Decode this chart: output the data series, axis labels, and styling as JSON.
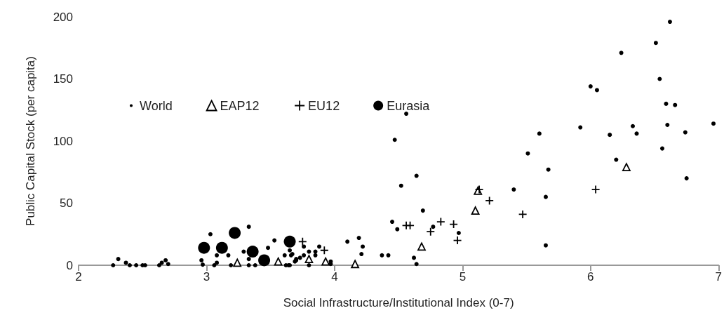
{
  "chart_data": {
    "type": "scatter",
    "xlabel": "Social Infrastructure/Institutional Index (0-7)",
    "ylabel": "Public Capital Stock (per capita)",
    "xlim": [
      2,
      7
    ],
    "xticks": [
      2,
      3,
      4,
      5,
      6,
      7
    ],
    "ylim": [
      0,
      200
    ],
    "yticks": [
      0,
      50,
      100,
      150,
      200
    ],
    "grid": false,
    "legend": "top left",
    "series": [
      {
        "name": "World",
        "color": "#000000",
        "marker": "circle",
        "x": [
          2.27,
          2.31,
          2.37,
          2.4,
          2.45,
          2.5,
          2.52,
          2.63,
          2.65,
          2.68,
          2.7,
          2.96,
          2.97,
          3.03,
          3.06,
          3.08,
          3.08,
          3.17,
          3.19,
          3.33,
          3.29,
          3.33,
          3.33,
          3.38,
          3.48,
          3.53,
          3.61,
          3.66,
          3.65,
          3.62,
          3.65,
          3.69,
          3.7,
          3.76,
          3.67,
          3.64,
          3.7,
          3.73,
          3.76,
          3.8,
          3.8,
          3.85,
          3.85,
          3.88,
          3.97,
          3.97,
          4.1,
          4.19,
          4.22,
          4.21,
          4.37,
          4.42,
          4.45,
          4.49,
          4.62,
          4.64,
          4.77,
          4.97,
          4.69,
          4.56,
          4.47,
          4.64,
          4.52,
          6.62,
          6.51,
          6.24,
          6.54,
          6.0,
          6.05,
          6.59,
          6.66,
          6.96,
          6.6,
          5.92,
          6.33,
          6.36,
          6.15,
          6.74,
          5.6,
          6.56,
          5.51,
          6.2,
          5.67,
          5.4,
          5.65,
          5.65,
          6.75
        ],
        "values": [
          0,
          5,
          2,
          0,
          0,
          0,
          0,
          0,
          2,
          4,
          1,
          4,
          0.5,
          25,
          0,
          2,
          8,
          8,
          0,
          31,
          11,
          5,
          0,
          0,
          14,
          20,
          8,
          8,
          12,
          0,
          0,
          3,
          5,
          15,
          9,
          0,
          4,
          6,
          8,
          11,
          0,
          11,
          8,
          15,
          3,
          1,
          19,
          22,
          15,
          9,
          8,
          8,
          35,
          29,
          6,
          1,
          31,
          26,
          44,
          122,
          101,
          72,
          64,
          196,
          179,
          171,
          150,
          144,
          141,
          130,
          129,
          114,
          113,
          111,
          112,
          106,
          105,
          107,
          106,
          94,
          90,
          85,
          77,
          61,
          55,
          16,
          70
        ]
      },
      {
        "name": "EAP12",
        "color": "#000000",
        "marker": "triangle",
        "x": [
          3.24,
          3.56,
          3.8,
          3.93,
          4.16,
          4.68,
          5.12,
          5.1,
          6.28
        ],
        "values": [
          2,
          3,
          5,
          3,
          1,
          15,
          60,
          44,
          79
        ]
      },
      {
        "name": "EU12",
        "color": "#000000",
        "marker": "cross",
        "x": [
          3.75,
          3.92,
          4.56,
          4.59,
          4.75,
          4.83,
          4.93,
          4.96,
          5.13,
          5.21,
          5.47,
          6.04
        ],
        "values": [
          19,
          12,
          32,
          32,
          27,
          35,
          33,
          20,
          61,
          52,
          41,
          61
        ]
      },
      {
        "name": "Eurasia",
        "color": "#000000",
        "marker": "circle",
        "x": [
          2.98,
          3.12,
          3.22,
          3.36,
          3.45,
          3.65
        ],
        "values": [
          14,
          14,
          26,
          11,
          4,
          19
        ]
      }
    ]
  }
}
